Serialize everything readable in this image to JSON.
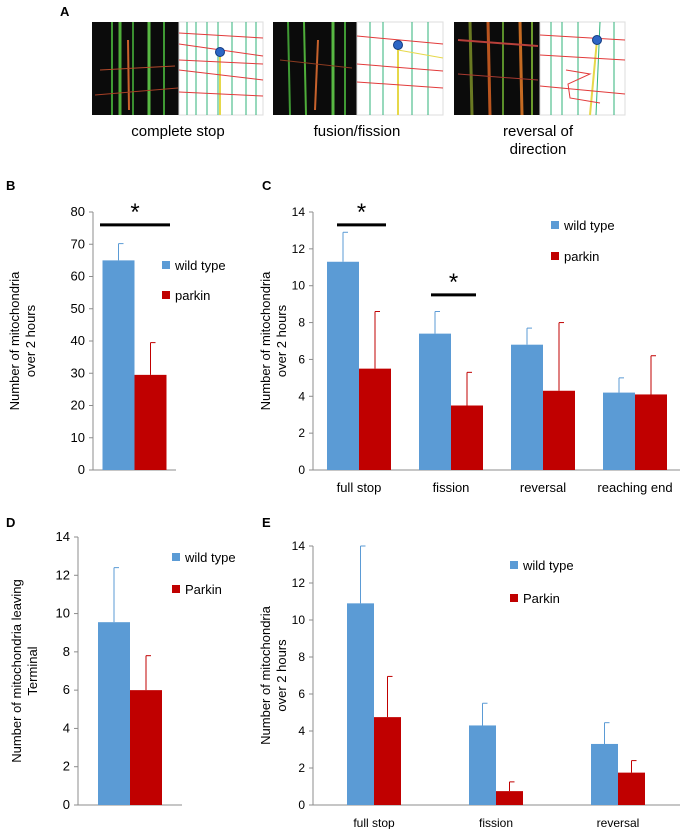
{
  "panel_a": {
    "label": "A",
    "items": [
      {
        "caption_lines": [
          "complete stop"
        ]
      },
      {
        "caption_lines": [
          "fusion/fission"
        ]
      },
      {
        "caption_lines": [
          "reversal of",
          "direction"
        ]
      }
    ]
  },
  "colors": {
    "wild_type": "#5b9bd5",
    "parkin": "#c00000"
  },
  "chart_data": [
    {
      "panel": "B",
      "type": "bar",
      "categories": [
        ""
      ],
      "ylabel": [
        "Number of mitochondria",
        "over 2 hours"
      ],
      "ylim": [
        0,
        80
      ],
      "yticks": [
        0,
        10,
        20,
        30,
        40,
        50,
        60,
        70,
        80
      ],
      "series": [
        {
          "name": "wild type",
          "values": [
            65
          ],
          "errors": [
            5.2
          ]
        },
        {
          "name": "parkin",
          "values": [
            29.5
          ],
          "errors": [
            10
          ]
        }
      ],
      "significance": [
        {
          "category": 0,
          "y": 76,
          "marker": "*"
        }
      ]
    },
    {
      "panel": "C",
      "type": "bar",
      "categories": [
        "full stop",
        "fission",
        "reversal",
        "reaching end"
      ],
      "ylabel": [
        "Number of mitochondria",
        "over 2 hours"
      ],
      "ylim": [
        0,
        14
      ],
      "yticks": [
        0,
        2,
        4,
        6,
        8,
        10,
        12,
        14
      ],
      "series": [
        {
          "name": "wild type",
          "values": [
            11.3,
            7.4,
            6.8,
            4.2
          ],
          "errors": [
            1.6,
            1.2,
            0.9,
            0.8
          ]
        },
        {
          "name": "parkin",
          "values": [
            5.5,
            3.5,
            4.3,
            4.1
          ],
          "errors": [
            3.1,
            1.8,
            3.7,
            2.1
          ]
        }
      ],
      "significance": [
        {
          "category": 0,
          "y": 13.3,
          "marker": "*"
        },
        {
          "category": 1,
          "y": 9.5,
          "marker": "*"
        }
      ]
    },
    {
      "panel": "D",
      "type": "bar",
      "categories": [
        ""
      ],
      "ylabel": [
        "Number of mitochondria leaving",
        "Terminal"
      ],
      "ylim": [
        0,
        14
      ],
      "yticks": [
        0,
        2,
        4,
        6,
        8,
        10,
        12,
        14
      ],
      "series": [
        {
          "name": "wild type",
          "values": [
            9.55
          ],
          "errors": [
            2.85
          ]
        },
        {
          "name": "Parkin",
          "values": [
            6.0
          ],
          "errors": [
            1.8
          ]
        }
      ],
      "significance": []
    },
    {
      "panel": "E",
      "type": "bar",
      "categories": [
        "full stop",
        "fission",
        "reversal"
      ],
      "ylabel": [
        "Number of mitochondria",
        "over 2 hours"
      ],
      "ylim": [
        0,
        14
      ],
      "yticks": [
        0,
        2,
        4,
        6,
        8,
        10,
        12,
        14
      ],
      "series": [
        {
          "name": "wild type",
          "values": [
            10.9,
            4.3,
            3.3
          ],
          "errors": [
            3.1,
            1.2,
            1.15
          ]
        },
        {
          "name": "Parkin",
          "values": [
            4.75,
            0.75,
            1.75
          ],
          "errors": [
            2.2,
            0.5,
            0.65
          ]
        }
      ],
      "significance": []
    }
  ]
}
